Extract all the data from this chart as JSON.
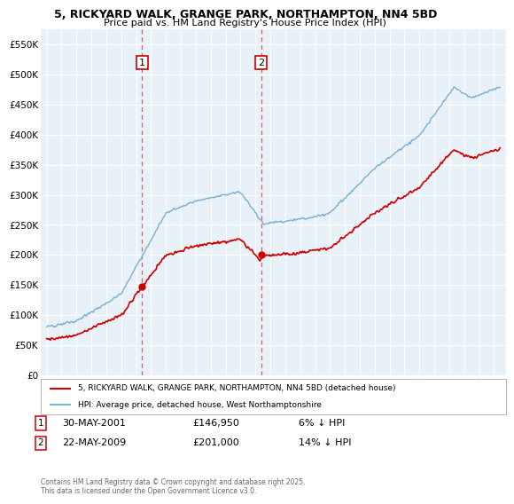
{
  "title_line1": "5, RICKYARD WALK, GRANGE PARK, NORTHAMPTON, NN4 5BD",
  "title_line2": "Price paid vs. HM Land Registry's House Price Index (HPI)",
  "red_label": "5, RICKYARD WALK, GRANGE PARK, NORTHAMPTON, NN4 5BD (detached house)",
  "blue_label": "HPI: Average price, detached house, West Northamptonshire",
  "annotation1": {
    "num": "1",
    "date": "30-MAY-2001",
    "price": "£146,950",
    "note": "6% ↓ HPI"
  },
  "annotation2": {
    "num": "2",
    "date": "22-MAY-2009",
    "price": "£201,000",
    "note": "14% ↓ HPI"
  },
  "footer": "Contains HM Land Registry data © Crown copyright and database right 2025.\nThis data is licensed under the Open Government Licence v3.0.",
  "ylim": [
    0,
    575000
  ],
  "yticks": [
    0,
    50000,
    100000,
    150000,
    200000,
    250000,
    300000,
    350000,
    400000,
    450000,
    500000,
    550000
  ],
  "vline1_x": 2001.41,
  "vline2_x": 2009.39,
  "sale1_y": 146950,
  "sale2_y": 201000,
  "red_color": "#cc0000",
  "blue_color": "#7ab0d4",
  "plot_bg": "#e8f0f8",
  "grid_color": "#ffffff",
  "xlim_left": 1994.6,
  "xlim_right": 2025.8,
  "xticks": [
    1995,
    1996,
    1997,
    1998,
    1999,
    2000,
    2001,
    2002,
    2003,
    2004,
    2005,
    2006,
    2007,
    2008,
    2009,
    2010,
    2011,
    2012,
    2013,
    2014,
    2015,
    2016,
    2017,
    2018,
    2019,
    2020,
    2021,
    2022,
    2023,
    2024,
    2025
  ]
}
